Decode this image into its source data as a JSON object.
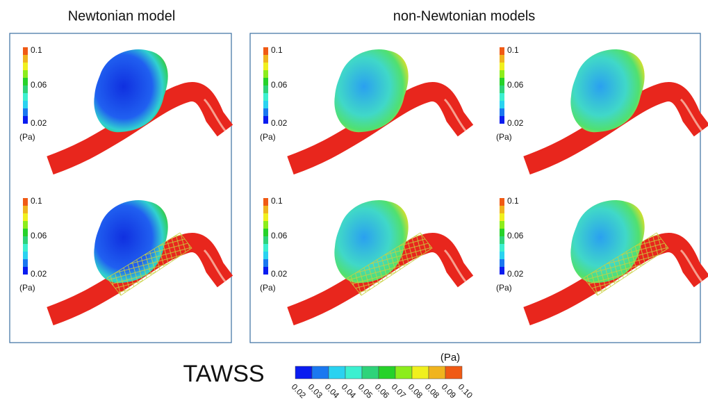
{
  "titles": {
    "left": "Newtonian model",
    "right": "non-Newtonian models"
  },
  "panels": [
    {
      "legend_labels": [
        "0.1",
        "0.06",
        "0.02"
      ],
      "unit": "(Pa)"
    },
    {
      "legend_labels": [
        "0.1",
        "0.06",
        "0.02"
      ],
      "unit": "(Pa)"
    },
    {
      "legend_labels": [
        "0.1",
        "0.06",
        "0.02"
      ],
      "unit": "(Pa)"
    },
    {
      "legend_labels": [
        "0.1",
        "0.06",
        "0.02"
      ],
      "unit": "(Pa)"
    },
    {
      "legend_labels": [
        "0.1",
        "0.06",
        "0.02"
      ],
      "unit": "(Pa)"
    },
    {
      "legend_labels": [
        "0.1",
        "0.06",
        "0.02"
      ],
      "unit": "(Pa)"
    }
  ],
  "colorbar": {
    "title": "TAWSS",
    "unit": "(Pa)",
    "colors": [
      "#0a1cf0",
      "#1a78f0",
      "#2ad2f0",
      "#3cf0d0",
      "#2ed37a",
      "#26d22a",
      "#8ced1c",
      "#f0f01e",
      "#f0b41e",
      "#f05a14"
    ],
    "labels": [
      "0.02",
      "0.03",
      "0.04",
      "0.04",
      "0.05",
      "0.06",
      "0.07",
      "0.08",
      "0.08",
      "0.09",
      "0.10"
    ]
  }
}
